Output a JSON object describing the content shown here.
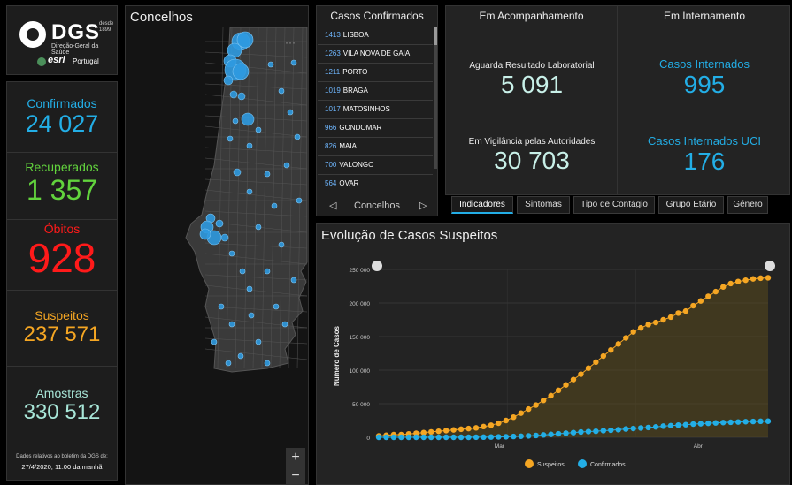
{
  "logo": {
    "brand": "DGS",
    "since": "desde 1899",
    "subtitle": "Direção-Geral da Saúde",
    "partner": "esri",
    "partner_country": "Portugal"
  },
  "stats": {
    "confirmados": {
      "label": "Confirmados",
      "value": "24 027",
      "color": "#23aee6"
    },
    "recuperados": {
      "label": "Recuperados",
      "value": "1 357",
      "color": "#62d33d"
    },
    "obitos": {
      "label": "Óbitos",
      "value": "928",
      "color": "#ff1a1a"
    },
    "suspeitos": {
      "label": "Suspeitos",
      "value": "237 571",
      "color": "#f5a623"
    },
    "amostras": {
      "label": "Amostras",
      "value": "330 512",
      "color": "#a8e6d8"
    },
    "note": "Dados relativos ao boletim da DGS de:",
    "note_date": "27/4/2020, 11:00 da manhã"
  },
  "map": {
    "title": "Concelhos",
    "more": "···",
    "zoom_in": "+",
    "zoom_out": "−"
  },
  "list": {
    "title": "Casos Confirmados",
    "items": [
      {
        "count": "1413",
        "name": "LISBOA"
      },
      {
        "count": "1263",
        "name": "VILA NOVA DE GAIA"
      },
      {
        "count": "1211",
        "name": "PORTO"
      },
      {
        "count": "1019",
        "name": "BRAGA"
      },
      {
        "count": "1017",
        "name": "MATOSINHOS"
      },
      {
        "count": "966",
        "name": "GONDOMAR"
      },
      {
        "count": "826",
        "name": "MAIA"
      },
      {
        "count": "700",
        "name": "VALONGO"
      },
      {
        "count": "564",
        "name": "OVAR"
      }
    ],
    "nav_label": "Concelhos",
    "prev": "◁",
    "next": "▷"
  },
  "monitor": {
    "left_title": "Em Acompanhamento",
    "right_title": "Em Internamento",
    "aguarda_label": "Aguarda Resultado Laboratorial",
    "aguarda_value": "5 091",
    "vigilancia_label": "Em Vigilância pelas Autoridades",
    "vigilancia_value": "30 703",
    "internados_label": "Casos Internados",
    "internados_value": "995",
    "uci_label": "Casos Internados UCI",
    "uci_value": "176"
  },
  "tabs": [
    {
      "label": "Indicadores",
      "active": true
    },
    {
      "label": "Sintomas",
      "active": false
    },
    {
      "label": "Tipo de Contágio",
      "active": false
    },
    {
      "label": "Grupo Etário",
      "active": false
    },
    {
      "label": "Género",
      "active": false
    }
  ],
  "chart_data": {
    "type": "line",
    "title": "Evolução de Casos Suspeitos",
    "xlabel": "",
    "ylabel": "Número de Casos",
    "ylim": [
      0,
      250000
    ],
    "yticks": [
      "0",
      "50 000",
      "100 000",
      "150 000",
      "200 000",
      "250 000"
    ],
    "xticks": [
      "Mar",
      "Abr"
    ],
    "grid": true,
    "legend_position": "bottom",
    "series": [
      {
        "name": "Suspeitos",
        "color": "#f5a623",
        "values": [
          2,
          3,
          4,
          4,
          5,
          6,
          7,
          8,
          9,
          10,
          11,
          12,
          13,
          14,
          16,
          18,
          21,
          25,
          30,
          36,
          42,
          48,
          55,
          62,
          70,
          78,
          86,
          94,
          103,
          112,
          121,
          130,
          139,
          148,
          157,
          163,
          168,
          171,
          175,
          179,
          185,
          188,
          196,
          203,
          210,
          217,
          224,
          229,
          232,
          234,
          236,
          237,
          237.571
        ]
      },
      {
        "name": "Confirmados",
        "color": "#23aee6",
        "values": [
          0,
          0,
          0,
          0,
          0,
          0,
          0,
          0,
          0,
          0,
          0,
          0,
          0,
          0.1,
          0.2,
          0.4,
          0.6,
          0.8,
          1.2,
          1.6,
          2.1,
          2.7,
          3.5,
          4.3,
          5.2,
          6.1,
          7.0,
          7.9,
          8.5,
          9.0,
          9.9,
          10.5,
          11.3,
          12.4,
          13.1,
          13.9,
          14.6,
          15.5,
          16.6,
          17.4,
          18.1,
          18.8,
          19.7,
          20.2,
          20.9,
          21.4,
          22.0,
          22.4,
          22.8,
          23.3,
          23.6,
          23.9,
          24.027
        ]
      }
    ]
  }
}
